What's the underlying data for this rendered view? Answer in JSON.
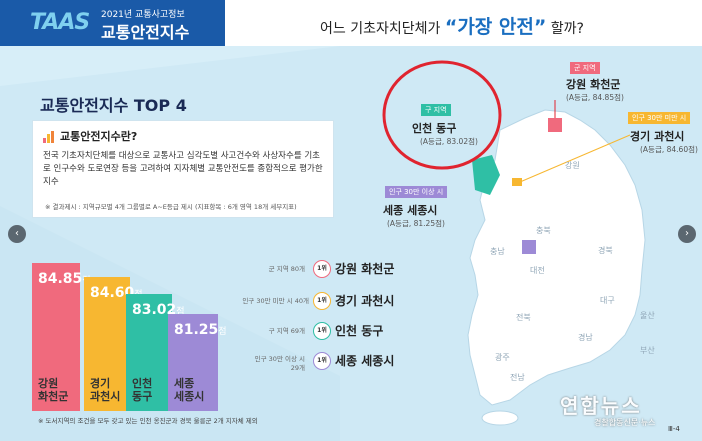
{
  "header": {
    "logo_mark": "TAAS",
    "logo_small": "2021년 교통사고정보",
    "logo_title": "교통안전지수",
    "headline_prefix": "어느 기초자치단체가 ",
    "headline_highlight": "“가장 안전”",
    "headline_suffix": " 할까?"
  },
  "left": {
    "top4_title": "교통안전지수 TOP 4",
    "info_question": "교통안전지수란?",
    "info_desc": "전국 기초자치단체를 대상으로 교통사고 심각도별 사고건수와 사상자수를 기초로 인구수와 도로연장 등을 고려하여 지자체별 교통안전도를 종합적으로 평가한 지수",
    "info_note": "※ 결과제시 : 지역규모별 4개 그룹별로 A~E등급 제시 (지표항목 : 6개 영역 18개 세부지표)"
  },
  "bars": [
    {
      "score": "84.85",
      "unit": "점",
      "name_line1": "강원",
      "name_line2": "화천군",
      "color": "#f06a7d"
    },
    {
      "score": "84.60",
      "unit": "점",
      "name_line1": "경기",
      "name_line2": "과천시",
      "color": "#f7b731"
    },
    {
      "score": "83.02",
      "unit": "점",
      "name_line1": "인천",
      "name_line2": "동구",
      "color": "#2fbfa5"
    },
    {
      "score": "81.25",
      "unit": "점",
      "name_line1": "세종",
      "name_line2": "세종시",
      "color": "#9d8ad6"
    }
  ],
  "ranks": [
    {
      "cond": "군 지역 80개",
      "badge": "1위",
      "name": "강원 화천군",
      "color": "#f06a7d"
    },
    {
      "cond": "인구 30만 미만 시 40개",
      "badge": "1위",
      "name": "경기 과천시",
      "color": "#f7b731"
    },
    {
      "cond": "구 지역 69개",
      "badge": "1위",
      "name": "인천 동구",
      "color": "#2fbfa5"
    },
    {
      "cond_line1": "인구 30만 이상 시",
      "cond_line2": "29개",
      "badge": "1위",
      "name": "세종 세종시",
      "color": "#9d8ad6"
    }
  ],
  "footnote": "※ 도서지역의 조건을 모두 갖고 있는 인천 옹진군과 경북 울릉군 2개 지자체 제외",
  "map": {
    "callouts": [
      {
        "tag": "군 지역",
        "name": "강원 화천군",
        "grade": "(A등급, 84.85점)",
        "tag_color": "#f06a7d"
      },
      {
        "tag": "구 지역",
        "name": "인천 동구",
        "grade": "(A등급, 83.02점)",
        "tag_color": "#2fbfa5"
      },
      {
        "tag": "인구 30만 미만 시",
        "name": "경기 과천시",
        "grade": "(A등급, 84.60점)",
        "tag_color": "#f7b731"
      },
      {
        "tag": "인구 30만 이상 시",
        "name": "세종 세종시",
        "grade": "(A등급, 81.25점)",
        "tag_color": "#9d8ad6"
      }
    ],
    "provinces": [
      "강원",
      "충북",
      "충남",
      "대전",
      "경북",
      "대구",
      "전북",
      "광주",
      "전남",
      "경남",
      "부산",
      "울산"
    ]
  },
  "watermark": {
    "main": "연합뉴스",
    "sub": "경찰합동신문·뉴스"
  },
  "page_num": "Ⅲ-4",
  "nav": {
    "prev": "‹",
    "next": "›"
  },
  "colors": {
    "brand_blue": "#1a5aa8",
    "background": "#d7eef8",
    "highlight_circle": "#e0242f",
    "map_land": "#ffffff"
  }
}
